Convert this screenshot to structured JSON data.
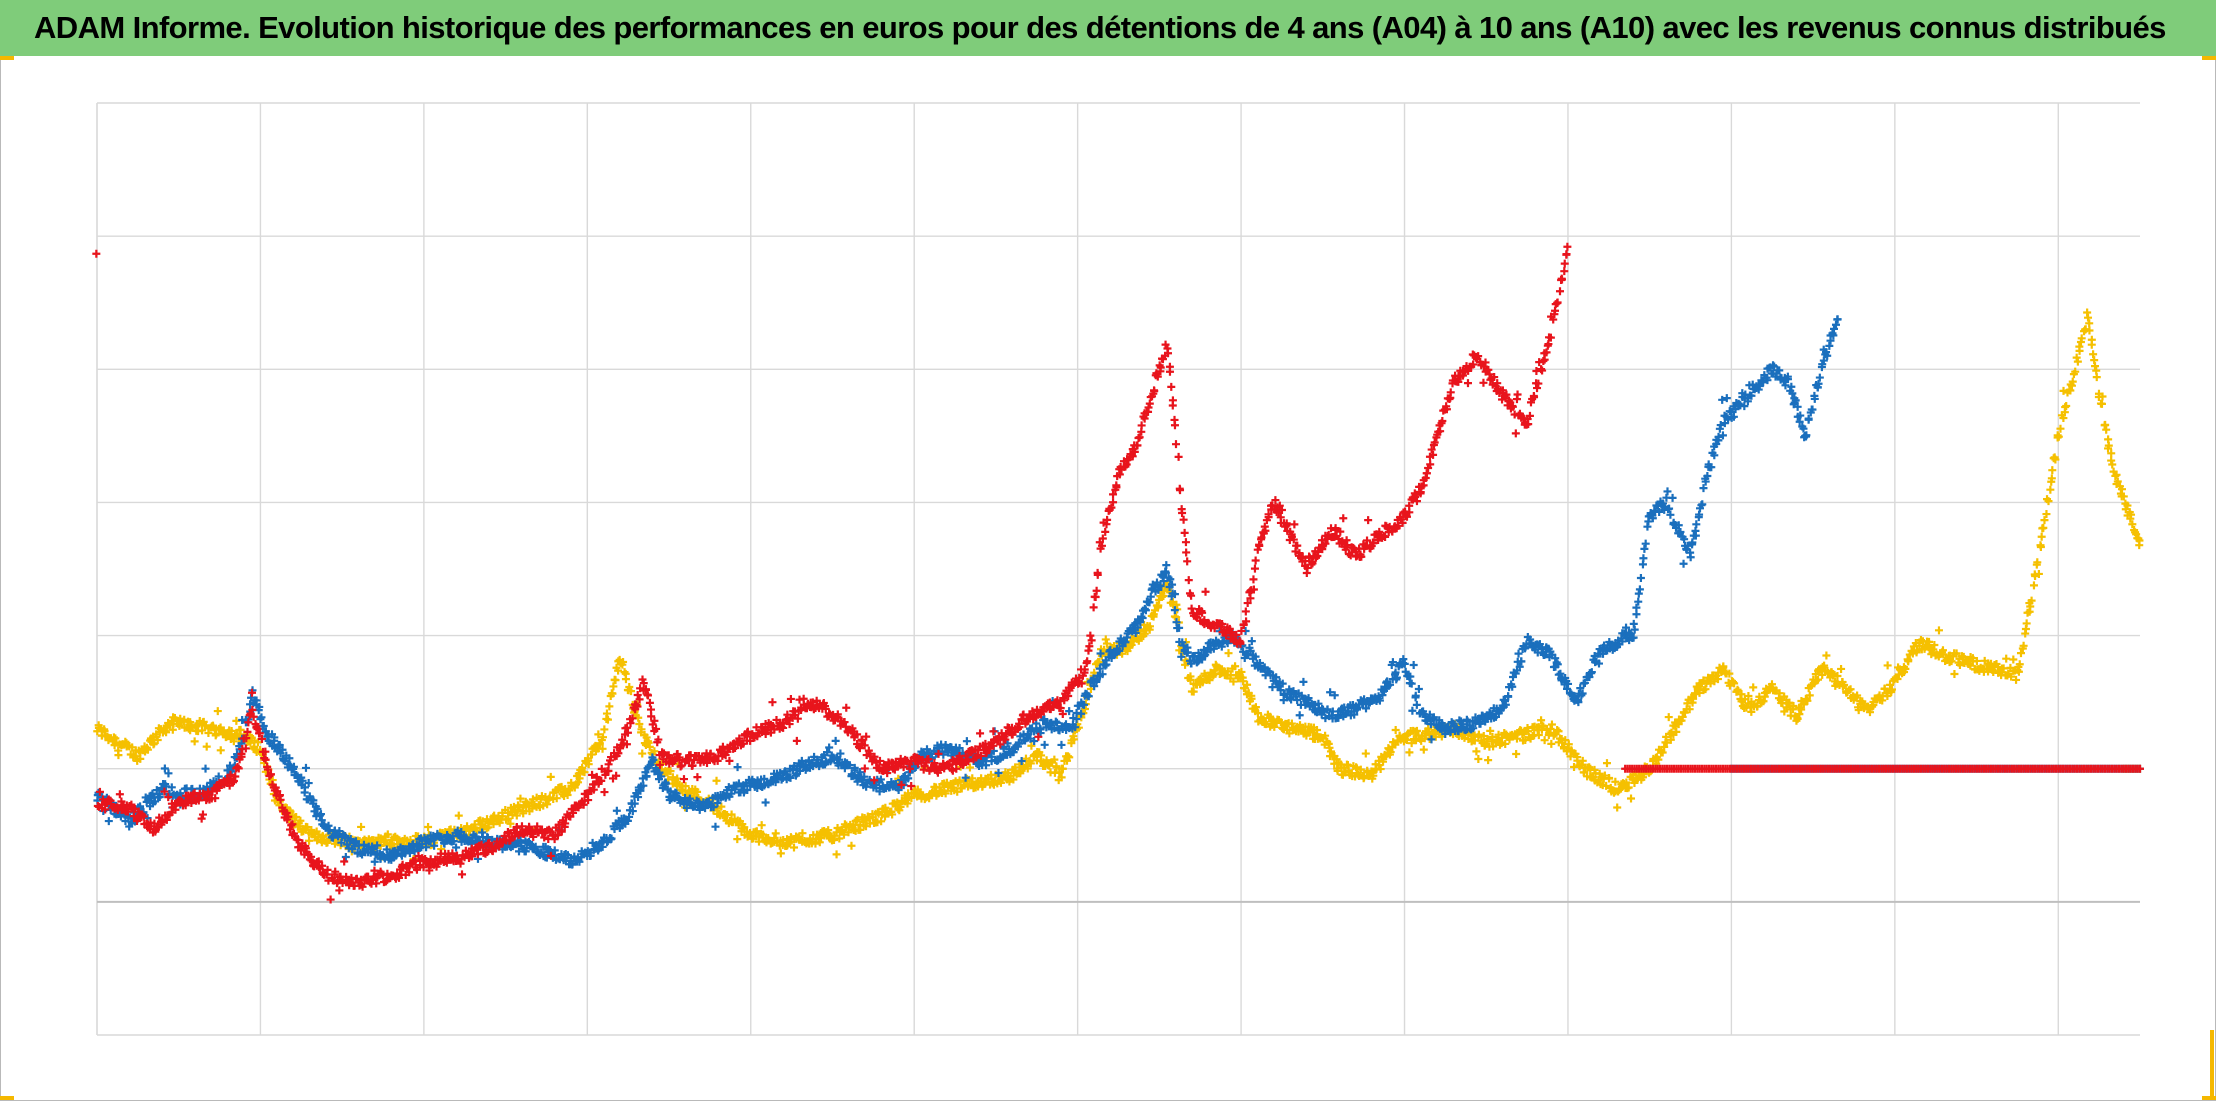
{
  "title": "ADAM Informe. Evolution historique des performances en euros pour des détentions de 4 ans (A04) à 10 ans (A10) avec les revenus connus distribués",
  "colors": {
    "title_bar": "#7fcc7a",
    "series_yellow": "#f5c000",
    "series_blue": "#1a6fbd",
    "series_red": "#e8141c",
    "grid": "#d9d9d9",
    "baseline": "#bfbfbf",
    "corner_marks": "#f5b800"
  },
  "chart_data": {
    "type": "scatter",
    "marker": "plus",
    "grid": true,
    "legend": "none",
    "xlim": [
      0,
      12.5
    ],
    "ylim": [
      -1,
      6
    ],
    "x_gridlines": [
      1,
      2,
      3,
      4,
      5,
      6,
      7,
      8,
      9,
      10,
      11,
      12
    ],
    "y_gridlines": [
      1,
      2,
      3,
      4,
      5,
      6,
      -1
    ],
    "zero_line": 0,
    "series": [
      {
        "color": "#f5c000",
        "keypoints": [
          [
            0.0,
            1.3
          ],
          [
            0.25,
            1.1
          ],
          [
            0.45,
            1.35
          ],
          [
            0.7,
            1.3
          ],
          [
            0.88,
            1.25
          ],
          [
            1.0,
            1.15
          ],
          [
            1.1,
            0.75
          ],
          [
            1.3,
            0.5
          ],
          [
            1.6,
            0.45
          ],
          [
            2.0,
            0.45
          ],
          [
            2.3,
            0.55
          ],
          [
            2.6,
            0.7
          ],
          [
            2.9,
            0.85
          ],
          [
            3.1,
            1.25
          ],
          [
            3.2,
            1.85
          ],
          [
            3.32,
            1.3
          ],
          [
            3.45,
            1.0
          ],
          [
            3.6,
            0.85
          ],
          [
            3.8,
            0.7
          ],
          [
            4.0,
            0.5
          ],
          [
            4.25,
            0.45
          ],
          [
            4.5,
            0.5
          ],
          [
            4.8,
            0.65
          ],
          [
            5.0,
            0.8
          ],
          [
            5.2,
            0.85
          ],
          [
            5.4,
            0.9
          ],
          [
            5.6,
            0.95
          ],
          [
            5.75,
            1.1
          ],
          [
            5.9,
            0.95
          ],
          [
            6.0,
            1.3
          ],
          [
            6.15,
            1.9
          ],
          [
            6.3,
            1.9
          ],
          [
            6.45,
            2.1
          ],
          [
            6.55,
            2.4
          ],
          [
            6.62,
            2.0
          ],
          [
            6.7,
            1.6
          ],
          [
            6.85,
            1.75
          ],
          [
            7.0,
            1.7
          ],
          [
            7.1,
            1.4
          ],
          [
            7.3,
            1.3
          ],
          [
            7.5,
            1.25
          ],
          [
            7.6,
            1.0
          ],
          [
            7.8,
            0.95
          ],
          [
            7.95,
            1.2
          ],
          [
            8.1,
            1.25
          ],
          [
            8.3,
            1.3
          ],
          [
            8.5,
            1.2
          ],
          [
            8.7,
            1.25
          ],
          [
            8.9,
            1.3
          ],
          [
            9.1,
            1.0
          ],
          [
            9.3,
            0.85
          ],
          [
            9.5,
            1.0
          ],
          [
            9.65,
            1.3
          ],
          [
            9.8,
            1.6
          ],
          [
            9.95,
            1.75
          ],
          [
            10.1,
            1.45
          ],
          [
            10.25,
            1.6
          ],
          [
            10.4,
            1.4
          ],
          [
            10.55,
            1.75
          ],
          [
            10.7,
            1.6
          ],
          [
            10.85,
            1.45
          ],
          [
            11.0,
            1.65
          ],
          [
            11.15,
            1.95
          ],
          [
            11.3,
            1.85
          ],
          [
            11.45,
            1.8
          ],
          [
            11.6,
            1.75
          ],
          [
            11.75,
            1.7
          ],
          [
            11.88,
            2.6
          ],
          [
            12.0,
            3.5
          ],
          [
            12.1,
            4.0
          ],
          [
            12.18,
            4.4
          ],
          [
            12.25,
            3.8
          ],
          [
            12.35,
            3.2
          ],
          [
            12.45,
            2.85
          ],
          [
            12.5,
            2.7
          ]
        ],
        "flat_level": 1.0,
        "flat_x_range": [
          12.4,
          12.5
        ]
      },
      {
        "color": "#1a6fbd",
        "keypoints": [
          [
            0.0,
            0.8
          ],
          [
            0.2,
            0.6
          ],
          [
            0.4,
            0.85
          ],
          [
            0.6,
            0.8
          ],
          [
            0.8,
            0.95
          ],
          [
            0.88,
            1.15
          ],
          [
            0.95,
            1.55
          ],
          [
            1.05,
            1.25
          ],
          [
            1.2,
            1.0
          ],
          [
            1.4,
            0.55
          ],
          [
            1.6,
            0.4
          ],
          [
            1.8,
            0.35
          ],
          [
            2.0,
            0.45
          ],
          [
            2.2,
            0.5
          ],
          [
            2.4,
            0.45
          ],
          [
            2.7,
            0.4
          ],
          [
            2.9,
            0.3
          ],
          [
            3.1,
            0.45
          ],
          [
            3.25,
            0.65
          ],
          [
            3.4,
            1.05
          ],
          [
            3.5,
            0.8
          ],
          [
            3.7,
            0.7
          ],
          [
            3.9,
            0.85
          ],
          [
            4.1,
            0.9
          ],
          [
            4.3,
            1.0
          ],
          [
            4.5,
            1.1
          ],
          [
            4.7,
            0.9
          ],
          [
            4.9,
            0.85
          ],
          [
            5.05,
            1.1
          ],
          [
            5.2,
            1.15
          ],
          [
            5.4,
            1.05
          ],
          [
            5.6,
            1.15
          ],
          [
            5.8,
            1.35
          ],
          [
            5.95,
            1.3
          ],
          [
            6.05,
            1.55
          ],
          [
            6.2,
            1.85
          ],
          [
            6.35,
            2.05
          ],
          [
            6.45,
            2.3
          ],
          [
            6.55,
            2.5
          ],
          [
            6.62,
            2.0
          ],
          [
            6.7,
            1.8
          ],
          [
            6.8,
            1.9
          ],
          [
            6.95,
            2.0
          ],
          [
            7.1,
            1.8
          ],
          [
            7.25,
            1.6
          ],
          [
            7.4,
            1.5
          ],
          [
            7.55,
            1.4
          ],
          [
            7.7,
            1.45
          ],
          [
            7.85,
            1.55
          ],
          [
            8.0,
            1.8
          ],
          [
            8.1,
            1.4
          ],
          [
            8.25,
            1.3
          ],
          [
            8.45,
            1.35
          ],
          [
            8.6,
            1.45
          ],
          [
            8.75,
            1.95
          ],
          [
            8.9,
            1.85
          ],
          [
            9.05,
            1.5
          ],
          [
            9.2,
            1.9
          ],
          [
            9.4,
            2.0
          ],
          [
            9.5,
            2.9
          ],
          [
            9.6,
            3.0
          ],
          [
            9.75,
            2.6
          ],
          [
            9.85,
            3.2
          ],
          [
            9.95,
            3.6
          ],
          [
            10.1,
            3.8
          ],
          [
            10.25,
            4.0
          ],
          [
            10.35,
            3.9
          ],
          [
            10.45,
            3.5
          ],
          [
            10.55,
            4.0
          ],
          [
            10.65,
            4.4
          ]
        ],
        "flat_level": 1.0,
        "flat_x_range": [
          10.0,
          12.5
        ]
      },
      {
        "color": "#e8141c",
        "keypoints": [
          [
            0.0,
            0.75
          ],
          [
            0.2,
            0.7
          ],
          [
            0.35,
            0.55
          ],
          [
            0.5,
            0.75
          ],
          [
            0.7,
            0.8
          ],
          [
            0.85,
            0.95
          ],
          [
            0.95,
            1.45
          ],
          [
            1.05,
            1.0
          ],
          [
            1.2,
            0.5
          ],
          [
            1.4,
            0.2
          ],
          [
            1.6,
            0.15
          ],
          [
            1.8,
            0.2
          ],
          [
            2.0,
            0.3
          ],
          [
            2.2,
            0.35
          ],
          [
            2.4,
            0.4
          ],
          [
            2.6,
            0.55
          ],
          [
            2.8,
            0.5
          ],
          [
            3.0,
            0.8
          ],
          [
            3.2,
            1.15
          ],
          [
            3.35,
            1.65
          ],
          [
            3.45,
            1.1
          ],
          [
            3.6,
            1.05
          ],
          [
            3.8,
            1.1
          ],
          [
            4.0,
            1.25
          ],
          [
            4.2,
            1.35
          ],
          [
            4.4,
            1.5
          ],
          [
            4.6,
            1.3
          ],
          [
            4.8,
            1.0
          ],
          [
            5.0,
            1.05
          ],
          [
            5.2,
            1.0
          ],
          [
            5.35,
            1.1
          ],
          [
            5.5,
            1.2
          ],
          [
            5.7,
            1.4
          ],
          [
            5.9,
            1.5
          ],
          [
            6.05,
            1.75
          ],
          [
            6.15,
            2.7
          ],
          [
            6.25,
            3.2
          ],
          [
            6.35,
            3.4
          ],
          [
            6.45,
            3.8
          ],
          [
            6.55,
            4.2
          ],
          [
            6.62,
            3.2
          ],
          [
            6.7,
            2.2
          ],
          [
            6.8,
            2.1
          ],
          [
            6.9,
            2.05
          ],
          [
            7.0,
            1.95
          ],
          [
            7.1,
            2.6
          ],
          [
            7.2,
            3.0
          ],
          [
            7.3,
            2.75
          ],
          [
            7.4,
            2.5
          ],
          [
            7.55,
            2.8
          ],
          [
            7.7,
            2.6
          ],
          [
            7.85,
            2.75
          ],
          [
            8.0,
            2.9
          ],
          [
            8.1,
            3.1
          ],
          [
            8.3,
            3.9
          ],
          [
            8.45,
            4.1
          ],
          [
            8.6,
            3.8
          ],
          [
            8.75,
            3.6
          ],
          [
            8.9,
            4.3
          ],
          [
            9.0,
            4.9
          ]
        ],
        "flat_level": 1.0,
        "flat_x_range": [
          9.35,
          12.5
        ]
      }
    ]
  }
}
